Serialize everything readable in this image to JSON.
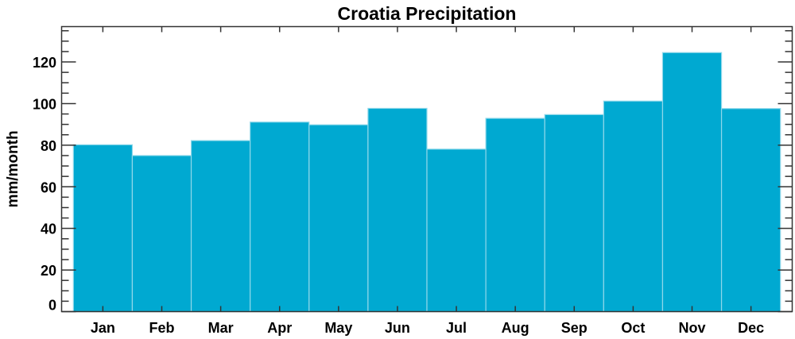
{
  "chart_data": {
    "type": "bar",
    "title": "Croatia Precipitation",
    "xlabel": "",
    "ylabel": "mm/month",
    "categories": [
      "Jan",
      "Feb",
      "Mar",
      "Apr",
      "May",
      "Jun",
      "Jul",
      "Aug",
      "Sep",
      "Oct",
      "Nov",
      "Dec"
    ],
    "values": [
      80.2,
      75.0,
      82.2,
      91.1,
      89.8,
      97.7,
      78.1,
      92.9,
      94.7,
      101.2,
      124.5,
      97.6
    ],
    "ylim": [
      0,
      137
    ],
    "xlim": [
      0.3,
      12.7
    ],
    "yticks": [
      0,
      20,
      40,
      60,
      80,
      100,
      120
    ],
    "yminor_step": 5,
    "grid": false,
    "legend": "none",
    "bar_color": "#00a9d1",
    "bar_edge_color": "#8fd8ea"
  }
}
